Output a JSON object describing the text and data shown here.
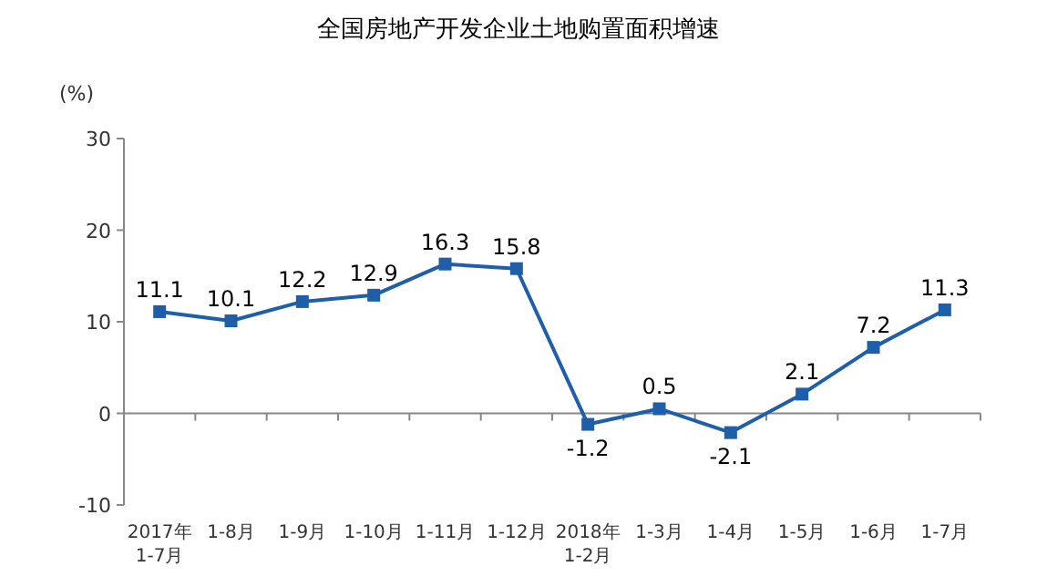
{
  "chart_data": {
    "type": "line",
    "title": "全国房地产开发企业土地购置面积增速",
    "ylabel": "(%)",
    "categories": [
      "2017年\n1-7月",
      "1-8月",
      "1-9月",
      "1-10月",
      "1-11月",
      "1-12月",
      "2018年\n1-2月",
      "1-3月",
      "1-4月",
      "1-5月",
      "1-6月",
      "1-7月"
    ],
    "series": [
      {
        "color": "#1f5ea8",
        "values": [
          11.1,
          10.1,
          12.2,
          12.9,
          16.3,
          15.8,
          -1.2,
          0.5,
          -2.1,
          2.1,
          7.2,
          11.3
        ]
      }
    ],
    "ylim": [
      -10,
      30
    ],
    "yticks": [
      -10,
      0,
      10,
      20,
      30
    ],
    "marker": "square",
    "data_labels": true
  }
}
